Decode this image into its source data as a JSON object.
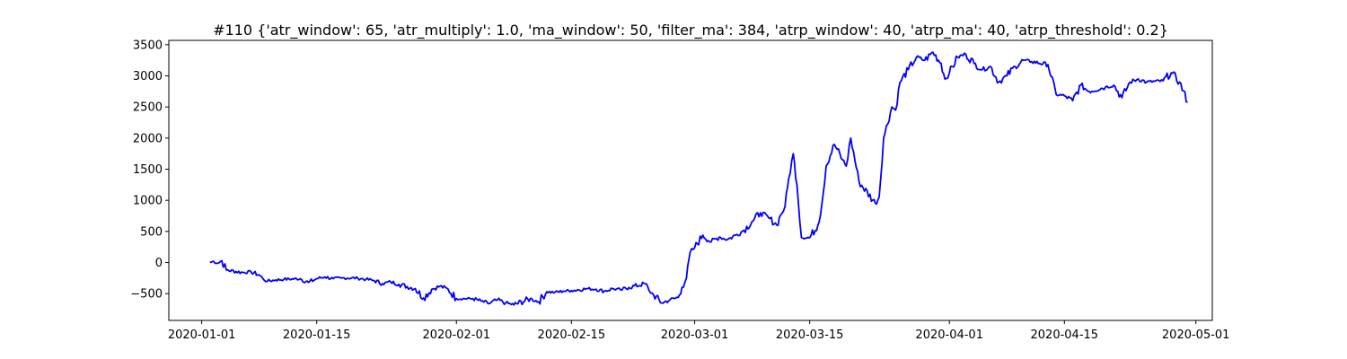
{
  "chart_data": {
    "type": "line",
    "title": "#110 {'atr_window': 65, 'atr_multiply': 1.0, 'ma_window': 50, 'filter_ma': 384, 'atrp_window': 40, 'atrp_ma': 40, 'atrp_threshold': 0.2}",
    "xlabel": "",
    "ylabel": "",
    "xlim": [
      "2019-12-28",
      "2020-05-03"
    ],
    "ylim": [
      -930,
      3570
    ],
    "x_ticks": [
      "2020-01-01",
      "2020-01-15",
      "2020-02-01",
      "2020-02-15",
      "2020-03-01",
      "2020-03-15",
      "2020-04-01",
      "2020-04-15",
      "2020-05-01"
    ],
    "y_ticks": [
      -500,
      0,
      500,
      1000,
      1500,
      2000,
      2500,
      3000,
      3500
    ],
    "grid": false,
    "line_color": "#0000ff",
    "series": [
      {
        "x": [
          "2020-01-02",
          "2020-01-02",
          "2020-01-03",
          "2020-01-03",
          "2020-01-04",
          "2020-01-06",
          "2020-01-07",
          "2020-01-08",
          "2020-01-08",
          "2020-01-09",
          "2020-01-10",
          "2020-01-11",
          "2020-01-13",
          "2020-01-14",
          "2020-01-15",
          "2020-01-16",
          "2020-01-17",
          "2020-01-18",
          "2020-01-20",
          "2020-01-21",
          "2020-01-22",
          "2020-01-23",
          "2020-01-24",
          "2020-01-25",
          "2020-01-27",
          "2020-01-28",
          "2020-01-29",
          "2020-01-30",
          "2020-01-31",
          "2020-02-01",
          "2020-02-03",
          "2020-02-04",
          "2020-02-05",
          "2020-02-06",
          "2020-02-07",
          "2020-02-08",
          "2020-02-10",
          "2020-02-11",
          "2020-02-12",
          "2020-02-13",
          "2020-02-14",
          "2020-02-15",
          "2020-02-17",
          "2020-02-18",
          "2020-02-19",
          "2020-02-20",
          "2020-02-21",
          "2020-02-22",
          "2020-02-24",
          "2020-02-24",
          "2020-02-25",
          "2020-02-26",
          "2020-02-27",
          "2020-02-28",
          "2020-02-28",
          "2020-02-29",
          "2020-02-29",
          "2020-03-01",
          "2020-03-02",
          "2020-03-03",
          "2020-03-04",
          "2020-03-05",
          "2020-03-06",
          "2020-03-07",
          "2020-03-08",
          "2020-03-09",
          "2020-03-10",
          "2020-03-11",
          "2020-03-11",
          "2020-03-12",
          "2020-03-12",
          "2020-03-13",
          "2020-03-13",
          "2020-03-14",
          "2020-03-15",
          "2020-03-16",
          "2020-03-16",
          "2020-03-17",
          "2020-03-18",
          "2020-03-19",
          "2020-03-19",
          "2020-03-20",
          "2020-03-21",
          "2020-03-23",
          "2020-03-23",
          "2020-03-24",
          "2020-03-25",
          "2020-03-25",
          "2020-03-26",
          "2020-03-27",
          "2020-03-28",
          "2020-03-29",
          "2020-03-30",
          "2020-03-31",
          "2020-03-31",
          "2020-04-01",
          "2020-04-02",
          "2020-04-03",
          "2020-04-04",
          "2020-04-05",
          "2020-04-06",
          "2020-04-07",
          "2020-04-08",
          "2020-04-09",
          "2020-04-10",
          "2020-04-11",
          "2020-04-13",
          "2020-04-14",
          "2020-04-15",
          "2020-04-16",
          "2020-04-17",
          "2020-04-18",
          "2020-04-20",
          "2020-04-21",
          "2020-04-22",
          "2020-04-23",
          "2020-04-24",
          "2020-04-25",
          "2020-04-27",
          "2020-04-28",
          "2020-04-29",
          "2020-04-30"
        ],
        "y": [
          0,
          20,
          -10,
          30,
          -120,
          -160,
          -150,
          -200,
          -260,
          -300,
          -280,
          -270,
          -260,
          -320,
          -260,
          -230,
          -260,
          -250,
          -250,
          -270,
          -290,
          -340,
          -310,
          -350,
          -420,
          -570,
          -430,
          -380,
          -430,
          -580,
          -580,
          -620,
          -660,
          -600,
          -650,
          -680,
          -580,
          -630,
          -470,
          -480,
          -460,
          -450,
          -420,
          -430,
          -460,
          -420,
          -440,
          -400,
          -340,
          -450,
          -520,
          -650,
          -600,
          -560,
          -400,
          -250,
          160,
          240,
          440,
          330,
          410,
          370,
          440,
          520,
          660,
          800,
          720,
          600,
          760,
          900,
          1350,
          1750,
          1250,
          400,
          400,
          600,
          900,
          1550,
          1900,
          1650,
          1550,
          2000,
          1300,
          950,
          1050,
          2000,
          2500,
          2450,
          2900,
          3100,
          3300,
          3250,
          3380,
          3200,
          2950,
          3050,
          3300,
          3350,
          3200,
          3100,
          3150,
          2900,
          3000,
          3150,
          3250,
          3230,
          3180,
          2700,
          2680,
          2600,
          2850,
          2750,
          2820,
          2850,
          2650,
          2900,
          2950,
          2900,
          2920,
          3050,
          2900,
          2580
        ]
      }
    ]
  }
}
